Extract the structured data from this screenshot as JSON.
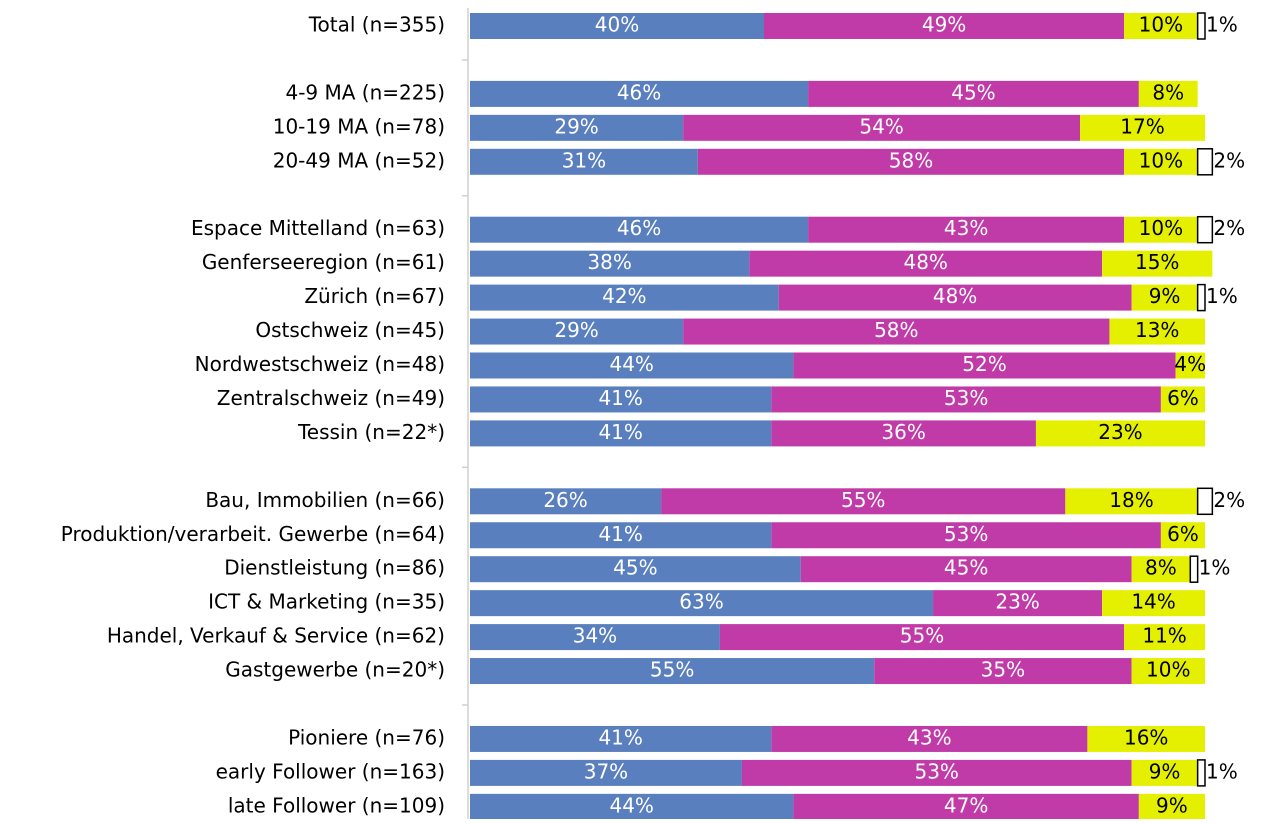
{
  "chart_data": {
    "type": "stacked-bar-horizontal",
    "categories": [
      "Total (n=355)",
      null,
      "4-9 MA (n=225)",
      "10-19 MA (n=78)",
      "20-49 MA (n=52)",
      null,
      "Espace Mittelland (n=63)",
      "Genferseeregion (n=61)",
      "Zürich (n=67)",
      "Ostschweiz (n=45)",
      "Nordwestschweiz (n=48)",
      "Zentralschweiz (n=49)",
      "Tessin (n=22*)",
      null,
      "Bau, Immobilien (n=66)",
      "Produktion/verarbeit. Gewerbe (n=64)",
      "Dienstleistung (n=86)",
      "ICT & Marketing (n=35)",
      "Handel, Verkauf & Service (n=62)",
      "Gastgewerbe (n=20*)",
      null,
      "Pioniere (n=76)",
      "early Follower (n=163)",
      "late Follower (n=109)"
    ],
    "series": [
      {
        "color": "#5a7fbe",
        "values": [
          40,
          null,
          46,
          29,
          31,
          null,
          46,
          38,
          42,
          29,
          44,
          41,
          41,
          null,
          26,
          41,
          45,
          63,
          34,
          55,
          null,
          41,
          37,
          44
        ],
        "value_labels": [
          "40%",
          null,
          "46%",
          "29%",
          "31%",
          null,
          "46%",
          "38%",
          "42%",
          "29%",
          "44%",
          "41%",
          "41%",
          null,
          "26%",
          "41%",
          "45%",
          "63%",
          "34%",
          "55%",
          null,
          "41%",
          "37%",
          "44%"
        ]
      },
      {
        "color": "#c03ba8",
        "values": [
          49,
          null,
          45,
          54,
          58,
          null,
          43,
          48,
          48,
          58,
          52,
          53,
          36,
          null,
          55,
          53,
          45,
          23,
          55,
          35,
          null,
          43,
          53,
          47
        ],
        "value_labels": [
          "49%",
          null,
          "45%",
          "54%",
          "58%",
          null,
          "43%",
          "48%",
          "48%",
          "58%",
          "52%",
          "53%",
          "36%",
          null,
          "55%",
          "53%",
          "45%",
          "23%",
          "55%",
          "35%",
          null,
          "43%",
          "53%",
          "47%"
        ]
      },
      {
        "color": "#e5f000",
        "values": [
          10,
          null,
          8,
          17,
          10,
          null,
          10,
          15,
          9,
          13,
          4,
          6,
          23,
          null,
          18,
          6,
          8,
          14,
          11,
          10,
          null,
          16,
          9,
          9
        ],
        "value_labels": [
          "10%",
          null,
          "8%",
          "17%",
          "10%",
          null,
          "10%",
          "15%",
          "9%",
          "13%",
          "4%",
          "6%",
          "23%",
          null,
          "18%",
          "6%",
          "8%",
          "14%",
          "11%",
          "10%",
          null,
          "16%",
          "9%",
          "9%"
        ]
      },
      {
        "color": "#ffffff",
        "values": [
          1,
          null,
          null,
          null,
          2,
          null,
          2,
          null,
          1,
          null,
          null,
          null,
          null,
          null,
          2,
          null,
          1,
          null,
          null,
          null,
          null,
          null,
          1,
          null
        ],
        "value_labels": [
          "1%",
          null,
          null,
          null,
          "2%",
          null,
          "2%",
          null,
          "1%",
          null,
          null,
          null,
          null,
          null,
          "2%",
          null,
          "1%",
          null,
          null,
          null,
          null,
          null,
          "1%",
          null
        ]
      }
    ],
    "xlim": [
      0,
      100
    ]
  }
}
